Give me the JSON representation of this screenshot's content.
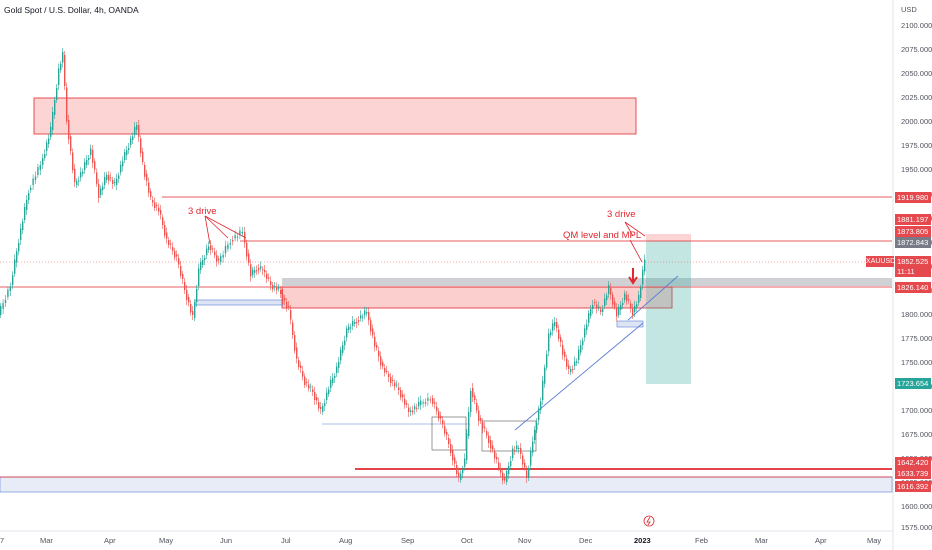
{
  "title": "Gold Spot / U.S. Dollar, 4h, OANDA",
  "annotations": {
    "left_pattern": "3 drive",
    "right_pattern": "3 drive",
    "qm_note": "QM level  and MPL"
  },
  "price_axis": {
    "currency": "USD",
    "ticks": [
      "2100.000",
      "2075.000",
      "2050.000",
      "2025.000",
      "2000.000",
      "1975.000",
      "1950.000",
      "1925.000",
      "1900.000",
      "1875.000",
      "1850.000",
      "1825.000",
      "1800.000",
      "1775.000",
      "1750.000",
      "1725.000",
      "1700.000",
      "1675.000",
      "1650.000",
      "1625.000",
      "1600.000",
      "1575.000"
    ]
  },
  "time_axis": {
    "ticks": [
      "7",
      "Mar",
      "Apr",
      "May",
      "Jun",
      "Jul",
      "Aug",
      "Sep",
      "Oct",
      "Nov",
      "Dec",
      "2023",
      "Feb",
      "Mar",
      "Apr",
      "May"
    ]
  },
  "price_tags": {
    "t1919": "1919.980",
    "t1881": "1881.197",
    "t1873": "1873.805",
    "t1872": "1872.843",
    "symbol": "XAUUSD",
    "current": "1852.525",
    "countdown": "11:11",
    "t1826": "1826.140",
    "t1723": "1723.654",
    "t1642": "1642.420",
    "t1633": "1633.739",
    "t1616": "1616.392"
  },
  "colors": {
    "up": "#26a69a",
    "down": "#ef5350",
    "zone_red": "rgba(239,83,80,0.25)",
    "zone_blue": "rgba(120,150,210,0.25)",
    "tp_green": "rgba(38,166,154,0.28)",
    "line_red": "#e0282e",
    "trend_blue": "#5b7fd6"
  },
  "icons": {
    "alert": "lightning-circle-icon"
  }
}
